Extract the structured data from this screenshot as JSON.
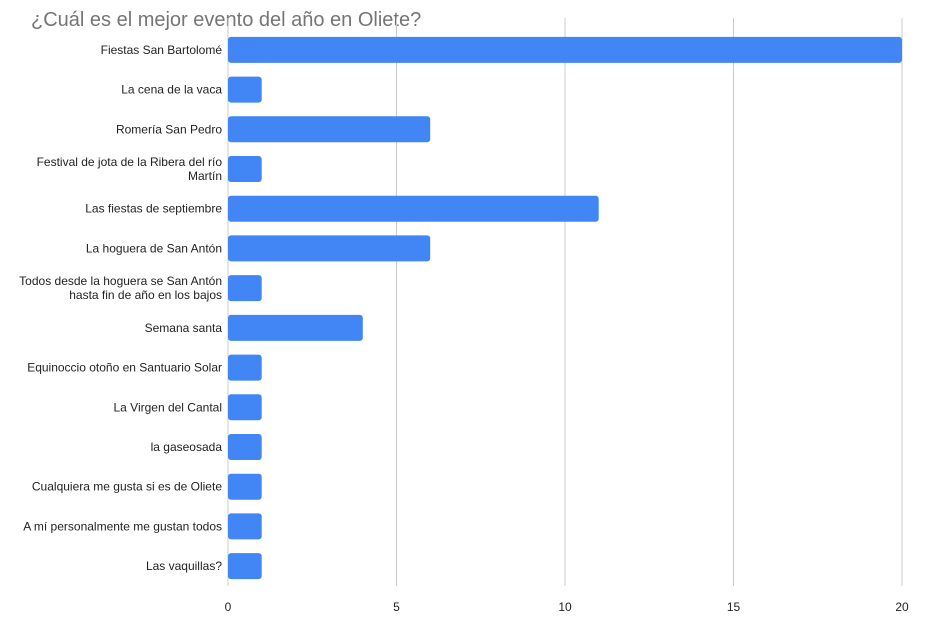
{
  "chart_data": {
    "type": "bar",
    "orientation": "horizontal",
    "title": "¿Cuál es el mejor evento del año en Oliete?",
    "categories": [
      "Fiestas San Bartolomé",
      "La cena de la vaca",
      "Romería San Pedro",
      "Festival de jota de la Ribera del río Martín",
      "Las fiestas de septiembre",
      "La hoguera de San Antón",
      "Todos desde la hoguera se San Antón hasta fin de año en los bajos",
      "Semana santa",
      "Equinoccio otoño en Santuario Solar",
      "La Virgen del Cantal",
      "la gaseosada",
      "Cualquiera me gusta si es de Oliete",
      "A mí personalmente me gustan todos",
      "Las vaquillas?"
    ],
    "values": [
      20,
      1,
      6,
      1,
      11,
      6,
      1,
      4,
      1,
      1,
      1,
      1,
      1,
      1
    ],
    "xlim": [
      0,
      20
    ],
    "xticks": [
      0,
      5,
      10,
      15,
      20
    ],
    "xlabel": "",
    "ylabel": "",
    "grid": "vertical",
    "legend": "none",
    "bar_color": "#4285f4",
    "grid_color": "#cccccc"
  }
}
